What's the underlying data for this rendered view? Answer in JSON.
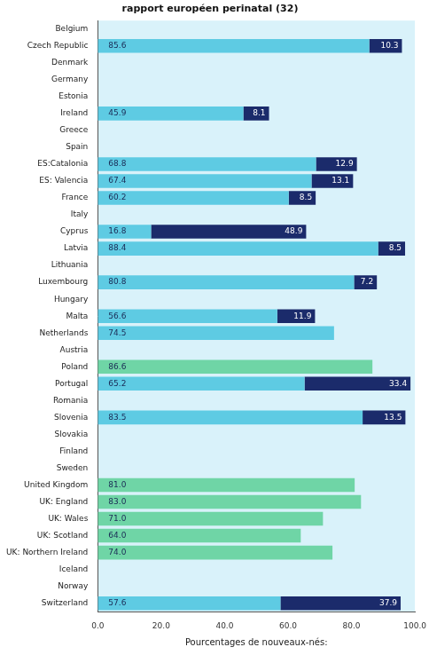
{
  "chart_data": {
    "type": "bar",
    "title": "rapport européen perinatal (32)",
    "x_label": "Pourcentages de nouveaux-nés:",
    "orientation": "horizontal",
    "stacked": true,
    "grid": false,
    "data_labels": true,
    "categories": [
      "Belgium",
      "Czech Republic",
      "Denmark",
      "Germany",
      "Estonia",
      "Ireland",
      "Greece",
      "Spain",
      "ES:Catalonia",
      "ES: Valencia",
      "France",
      "Italy",
      "Cyprus",
      "Latvia",
      "Lithuania",
      "Luxembourg",
      "Hungary",
      "Malta",
      "Netherlands",
      "Austria",
      "Poland",
      "Portugal",
      "Romania",
      "Slovenia",
      "Slovakia",
      "Finland",
      "Sweden",
      "United Kingdom",
      "UK: England",
      "UK: Wales",
      "UK: Scotland",
      "UK: Northern Ireland",
      "Iceland",
      "Norway",
      "Switzerland"
    ],
    "series": [
      {
        "color": "#5ecbe3",
        "values": [
          null,
          85.6,
          null,
          null,
          null,
          45.9,
          null,
          null,
          68.8,
          67.4,
          60.2,
          null,
          16.8,
          88.4,
          null,
          80.8,
          null,
          56.6,
          74.5,
          null,
          null,
          65.2,
          null,
          83.5,
          null,
          null,
          null,
          null,
          null,
          null,
          null,
          null,
          null,
          null,
          57.6
        ],
        "value_labels": [
          null,
          "85.6",
          null,
          null,
          null,
          "45.9",
          null,
          null,
          "68.8",
          "67.4",
          "60.2",
          null,
          "16.8",
          "88.4",
          null,
          "80.8",
          null,
          "56.6",
          "74.5",
          null,
          null,
          "65.2",
          null,
          "83.5",
          null,
          null,
          null,
          null,
          null,
          null,
          null,
          null,
          null,
          null,
          "57.6"
        ]
      },
      {
        "color": "#1b2b6b",
        "values": [
          null,
          10.3,
          null,
          null,
          null,
          8.1,
          null,
          null,
          12.9,
          13.1,
          8.5,
          null,
          48.9,
          8.5,
          null,
          7.2,
          null,
          11.9,
          null,
          null,
          null,
          33.4,
          null,
          13.5,
          null,
          null,
          null,
          null,
          null,
          null,
          null,
          null,
          null,
          null,
          37.9
        ],
        "value_labels": [
          null,
          "10.3",
          null,
          null,
          null,
          "8.1",
          null,
          null,
          "12.9",
          "13.1",
          "8.5",
          null,
          "48.9",
          "8.5",
          null,
          "7.2",
          null,
          "11.9",
          null,
          null,
          null,
          "33.4",
          null,
          "13.5",
          null,
          null,
          null,
          null,
          null,
          null,
          null,
          null,
          null,
          null,
          "37.9"
        ]
      },
      {
        "color": "#6fd5a6",
        "values": [
          null,
          null,
          null,
          null,
          null,
          null,
          null,
          null,
          null,
          null,
          null,
          null,
          null,
          null,
          null,
          null,
          null,
          null,
          null,
          null,
          86.6,
          null,
          null,
          null,
          null,
          null,
          null,
          81.0,
          83.0,
          71.0,
          64.0,
          74.0,
          null,
          null,
          null
        ],
        "value_labels": [
          null,
          null,
          null,
          null,
          null,
          null,
          null,
          null,
          null,
          null,
          null,
          null,
          null,
          null,
          null,
          null,
          null,
          null,
          null,
          null,
          "86.6",
          null,
          null,
          null,
          null,
          null,
          null,
          "81.0",
          "83.0",
          "71.0",
          "64.0",
          "74.0",
          null,
          null,
          null
        ]
      }
    ],
    "xlim": [
      0,
      100
    ],
    "xticks": [
      {
        "value": 0,
        "label": "0.0"
      },
      {
        "value": 20,
        "label": "20.0"
      },
      {
        "value": 40,
        "label": "40.0"
      },
      {
        "value": 60,
        "label": "60.0"
      },
      {
        "value": 80,
        "label": "80.0"
      },
      {
        "value": 100,
        "label": "100.0"
      }
    ]
  }
}
